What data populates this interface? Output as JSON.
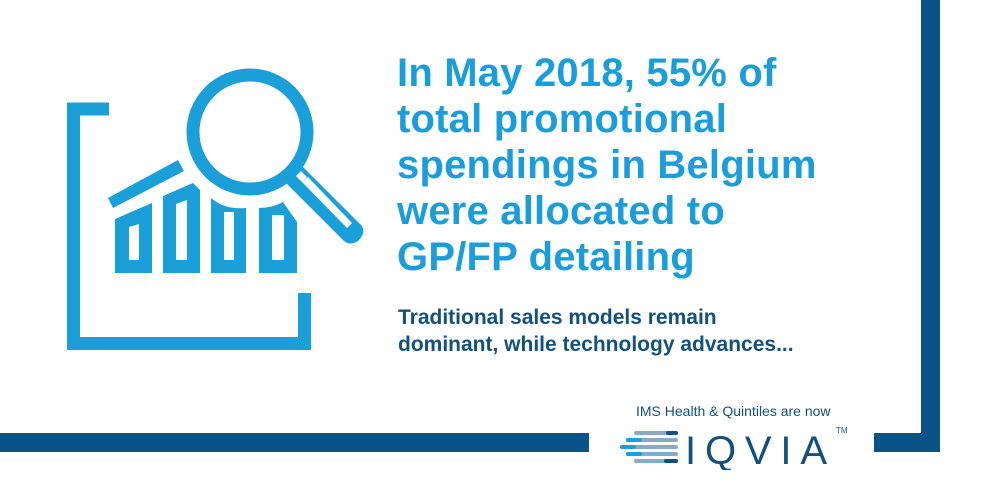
{
  "headline": {
    "lines": [
      "In May 2018, 55% of",
      "total promotional",
      "spendings in Belgium",
      "were allocated to",
      "GP/FP detailing"
    ]
  },
  "subheadline": {
    "lines": [
      "Traditional sales models remain",
      "dominant, while technology advances..."
    ]
  },
  "branding": {
    "tagline": "IMS Health & Quintiles are now",
    "logo_text": "IQVIA",
    "trademark": "TM"
  },
  "icon": "chart-magnifier-icon",
  "colors": {
    "accent": "#1b9dd9",
    "frame": "#0b5386",
    "text_dark": "#12507e"
  }
}
